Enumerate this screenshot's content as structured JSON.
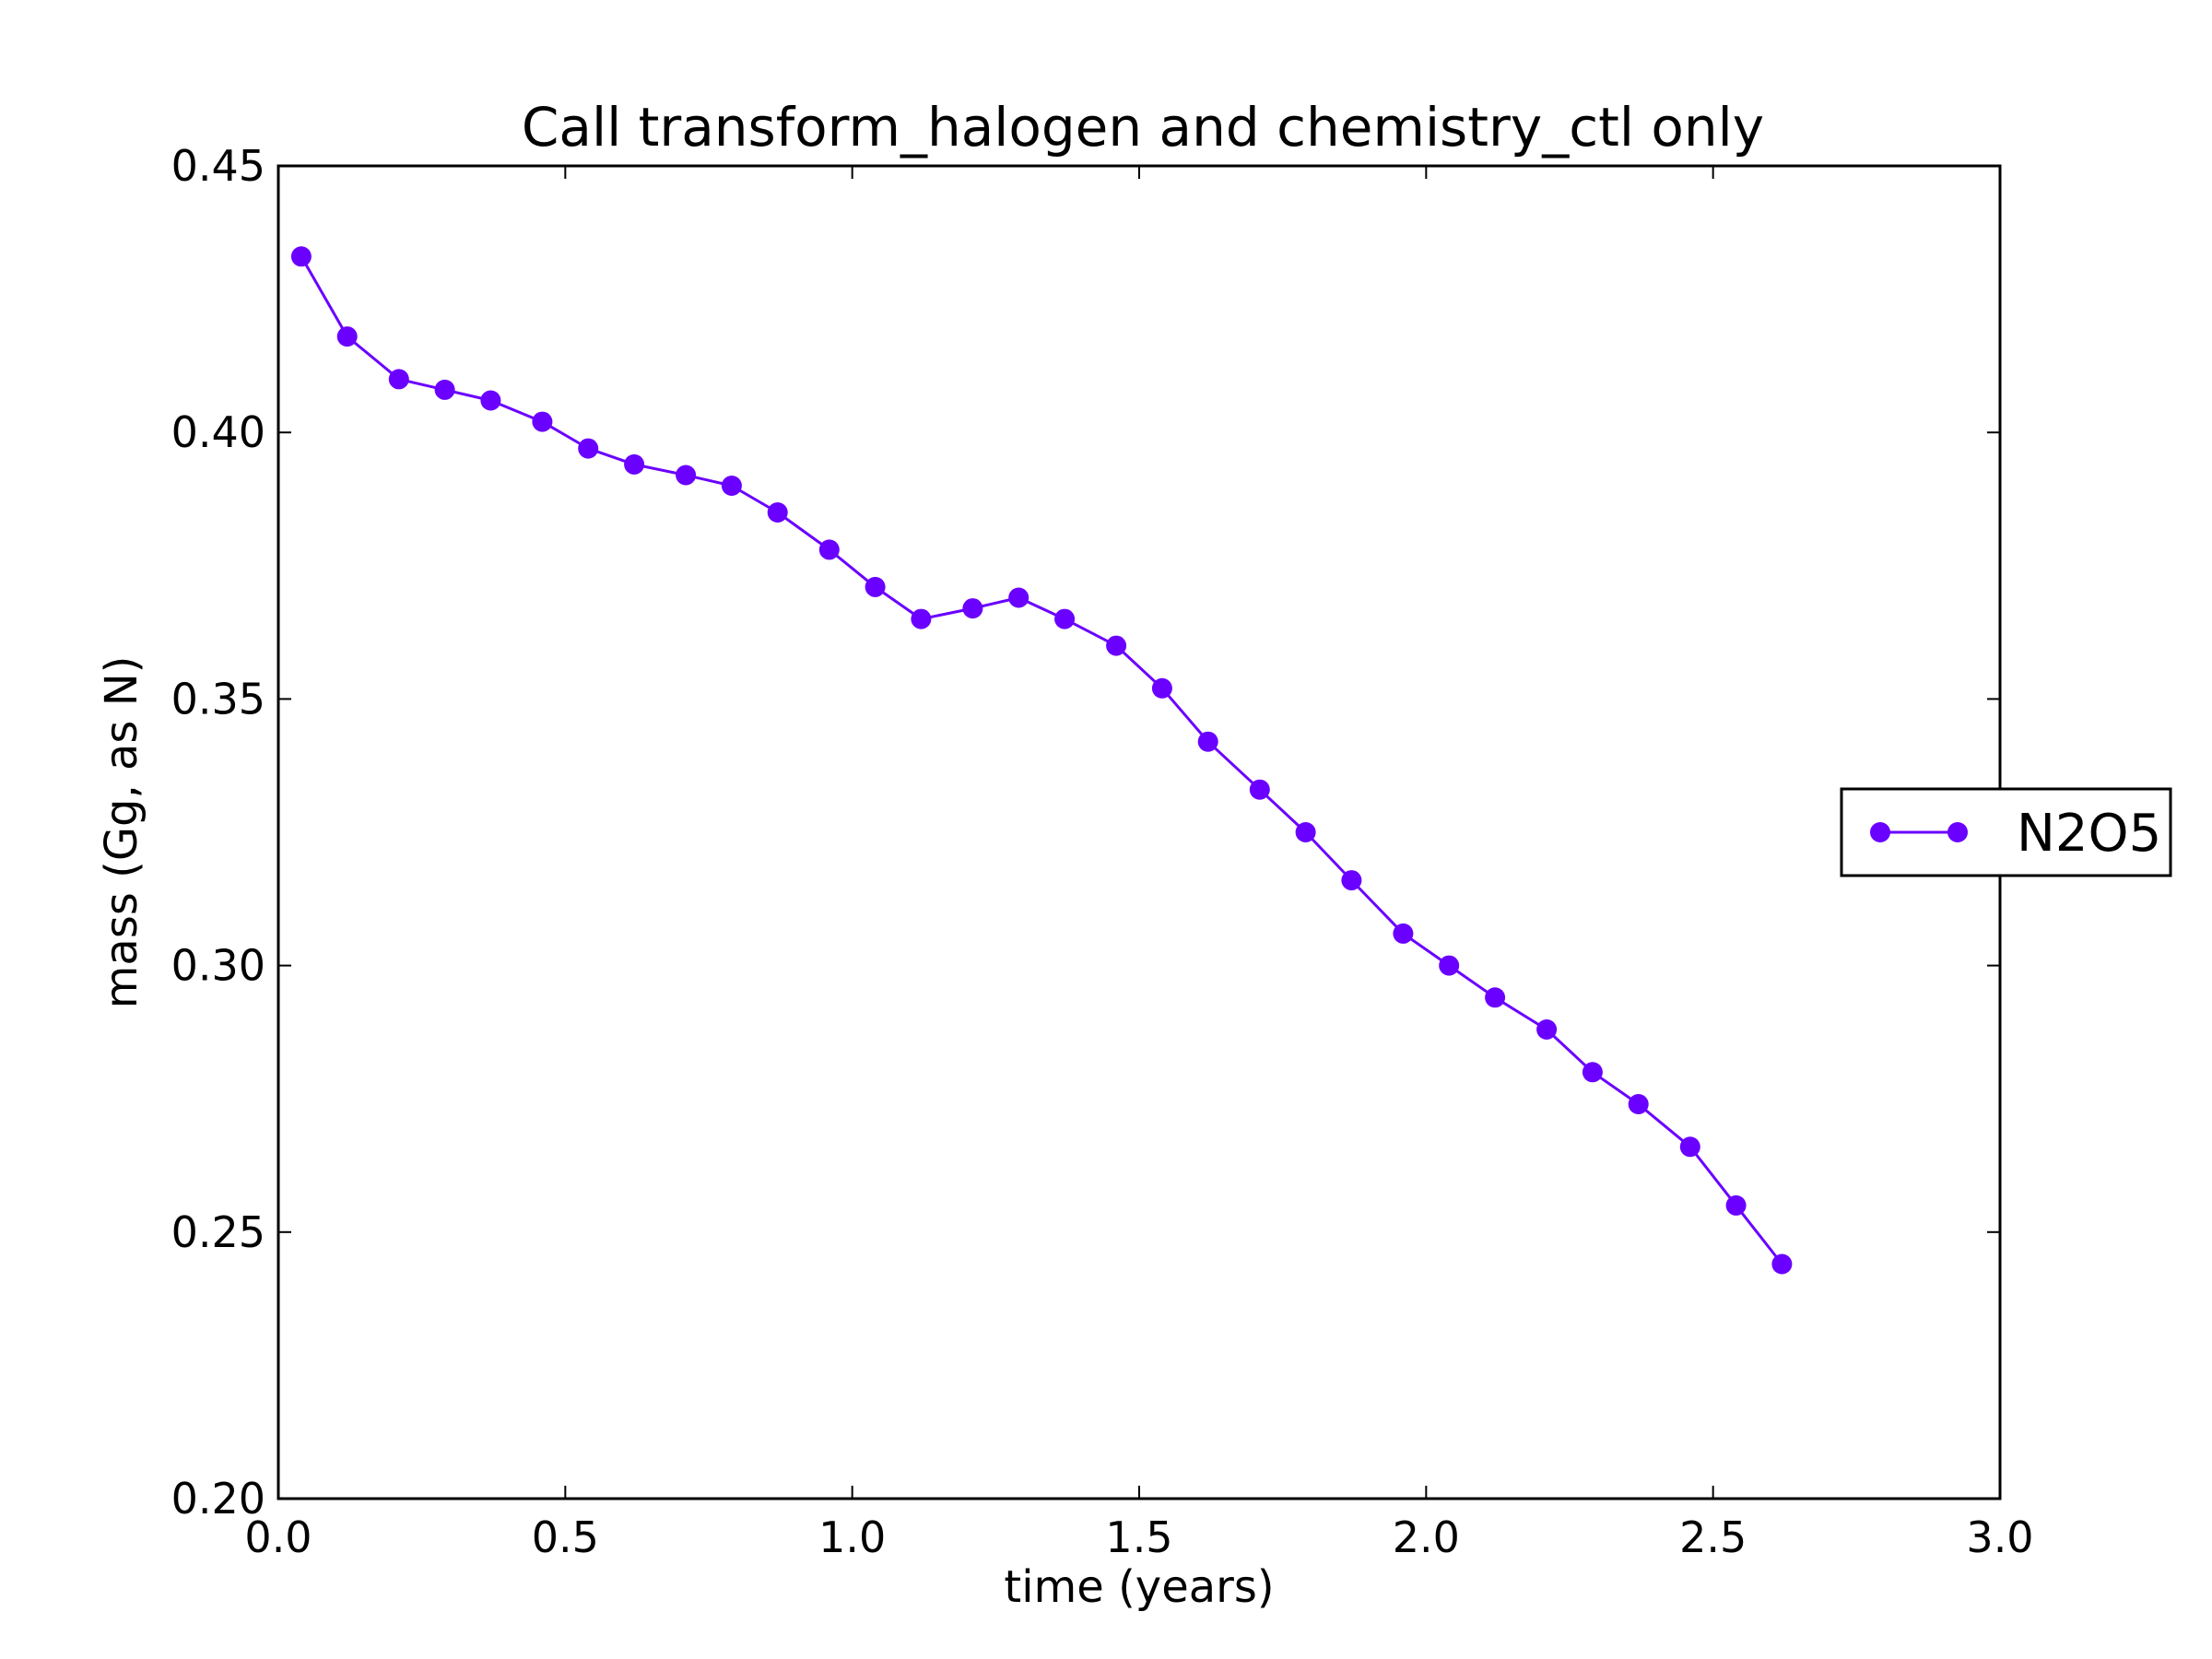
{
  "chart_data": {
    "type": "line",
    "title": "Call transform_halogen and chemistry_ctl only",
    "xlabel": "time (years)",
    "ylabel": "mass (Gg, as N)",
    "xlim": [
      0.0,
      3.0
    ],
    "ylim": [
      0.2,
      0.45
    ],
    "xticks": [
      "0.0",
      "0.5",
      "1.0",
      "1.5",
      "2.0",
      "2.5",
      "3.0"
    ],
    "yticks": [
      "0.20",
      "0.25",
      "0.30",
      "0.35",
      "0.40",
      "0.45"
    ],
    "grid": false,
    "legend_position": "right, outside plot",
    "series": [
      {
        "name": "N2O5",
        "color": "#6a00ff",
        "marker": "circle",
        "x": [
          0.04,
          0.12,
          0.21,
          0.29,
          0.37,
          0.46,
          0.54,
          0.62,
          0.71,
          0.79,
          0.87,
          0.96,
          1.04,
          1.12,
          1.21,
          1.29,
          1.37,
          1.46,
          1.54,
          1.62,
          1.71,
          1.79,
          1.87,
          1.96,
          2.04,
          2.12,
          2.21,
          2.29,
          2.37,
          2.46,
          2.54,
          2.62
        ],
        "y": [
          0.433,
          0.418,
          0.41,
          0.408,
          0.406,
          0.402,
          0.397,
          0.394,
          0.392,
          0.39,
          0.385,
          0.378,
          0.371,
          0.365,
          0.367,
          0.369,
          0.365,
          0.36,
          0.352,
          0.342,
          0.333,
          0.325,
          0.316,
          0.306,
          0.3,
          0.294,
          0.288,
          0.28,
          0.274,
          0.266,
          0.255,
          0.244
        ]
      }
    ]
  }
}
